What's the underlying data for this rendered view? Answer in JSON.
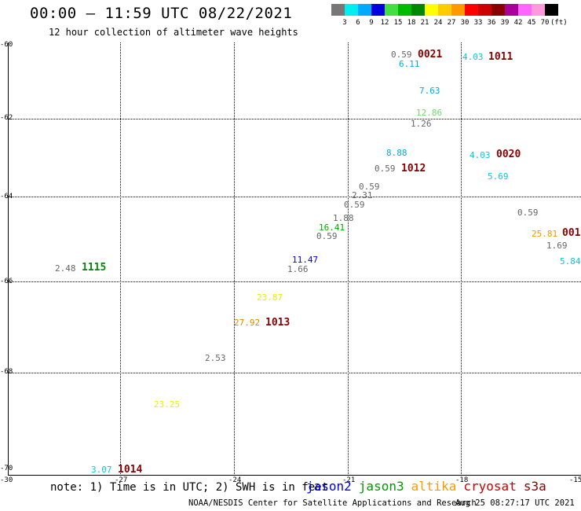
{
  "title": "00:00 — 11:59 UTC 08/22/2021",
  "subtitle": "12 hour collection of altimeter wave heights",
  "legend": {
    "colors": [
      "#777777",
      "#00eeee",
      "#00aaff",
      "#0000dd",
      "#44dd44",
      "#00bb00",
      "#008800",
      "#ffff00",
      "#ffcc00",
      "#ff9900",
      "#ff0000",
      "#cc0000",
      "#880000",
      "#aa0099",
      "#ff66ff",
      "#ff99dd",
      "#000000"
    ],
    "labels": [
      "3",
      "6",
      "9",
      "12",
      "15",
      "18",
      "21",
      "24",
      "27",
      "30",
      "33",
      "36",
      "39",
      "42",
      "45",
      "70"
    ],
    "unit": "(ft)"
  },
  "axes": {
    "x_labels": [
      "-27",
      "-24",
      "-21",
      "-18",
      "-15"
    ],
    "y_labels": [
      "-60",
      "-62",
      "-64",
      "-66",
      "-68",
      "-70"
    ],
    "corner_label": "-30"
  },
  "observations": [
    {
      "text": "0.59",
      "color": "#666666"
    },
    {
      "text": "6.11",
      "color": "#00aadd"
    },
    {
      "text": "4.03",
      "color": "#00ccdd"
    },
    {
      "text": "7.63",
      "color": "#00aadd"
    },
    {
      "text": "12.86",
      "color": "#66dd66"
    },
    {
      "text": "1.26",
      "color": "#666666"
    },
    {
      "text": "8.88",
      "color": "#00aadd"
    },
    {
      "text": "0.59",
      "color": "#666666"
    },
    {
      "text": "4.03",
      "color": "#00ccdd"
    },
    {
      "text": "5.69",
      "color": "#00ccdd"
    },
    {
      "text": "0.59",
      "color": "#666666"
    },
    {
      "text": "2.31",
      "color": "#666666"
    },
    {
      "text": "0.59",
      "color": "#666666"
    },
    {
      "text": "0.59",
      "color": "#666666"
    },
    {
      "text": "1.88",
      "color": "#666666"
    },
    {
      "text": "16.41",
      "color": "#00aa00"
    },
    {
      "text": "0.59",
      "color": "#666666"
    },
    {
      "text": "25.81",
      "color": "#ee9900"
    },
    {
      "text": "1.69",
      "color": "#666666"
    },
    {
      "text": "5.84",
      "color": "#00ccdd"
    },
    {
      "text": "11.47",
      "color": "#0000cc"
    },
    {
      "text": "1.66",
      "color": "#666666"
    },
    {
      "text": "2.48",
      "color": "#666666"
    },
    {
      "text": "23.87",
      "color": "#eeee00"
    },
    {
      "text": "27.92",
      "color": "#dd8800"
    },
    {
      "text": "2.53",
      "color": "#666666"
    },
    {
      "text": "23.25",
      "color": "#eeee00"
    },
    {
      "text": "3.07",
      "color": "#00ccdd"
    }
  ],
  "centers": [
    {
      "text": "0021",
      "color": "#880000"
    },
    {
      "text": "1011",
      "color": "#880000"
    },
    {
      "text": "1012",
      "color": "#880000"
    },
    {
      "text": "0020",
      "color": "#880000"
    },
    {
      "text": "001",
      "color": "#880000"
    },
    {
      "text": "1115",
      "color": "#008800"
    },
    {
      "text": "1013",
      "color": "#880000"
    },
    {
      "text": "1014",
      "color": "#880000"
    }
  ],
  "note": "note: 1) Time is in UTC; 2) SWH is in feet",
  "satellites": [
    {
      "name": "jason2",
      "color": "#0000ee"
    },
    {
      "name": "jason3",
      "color": "#009900"
    },
    {
      "name": "altika",
      "color": "#ff9900"
    },
    {
      "name": "cryosat",
      "color": "#cc0000"
    },
    {
      "name": "s3a",
      "color": "#880000"
    }
  ],
  "credit": "NOAA/NESDIS Center for Satellite Applications and Research",
  "timestamp": "Aug 25 08:27:17 UTC 2021"
}
